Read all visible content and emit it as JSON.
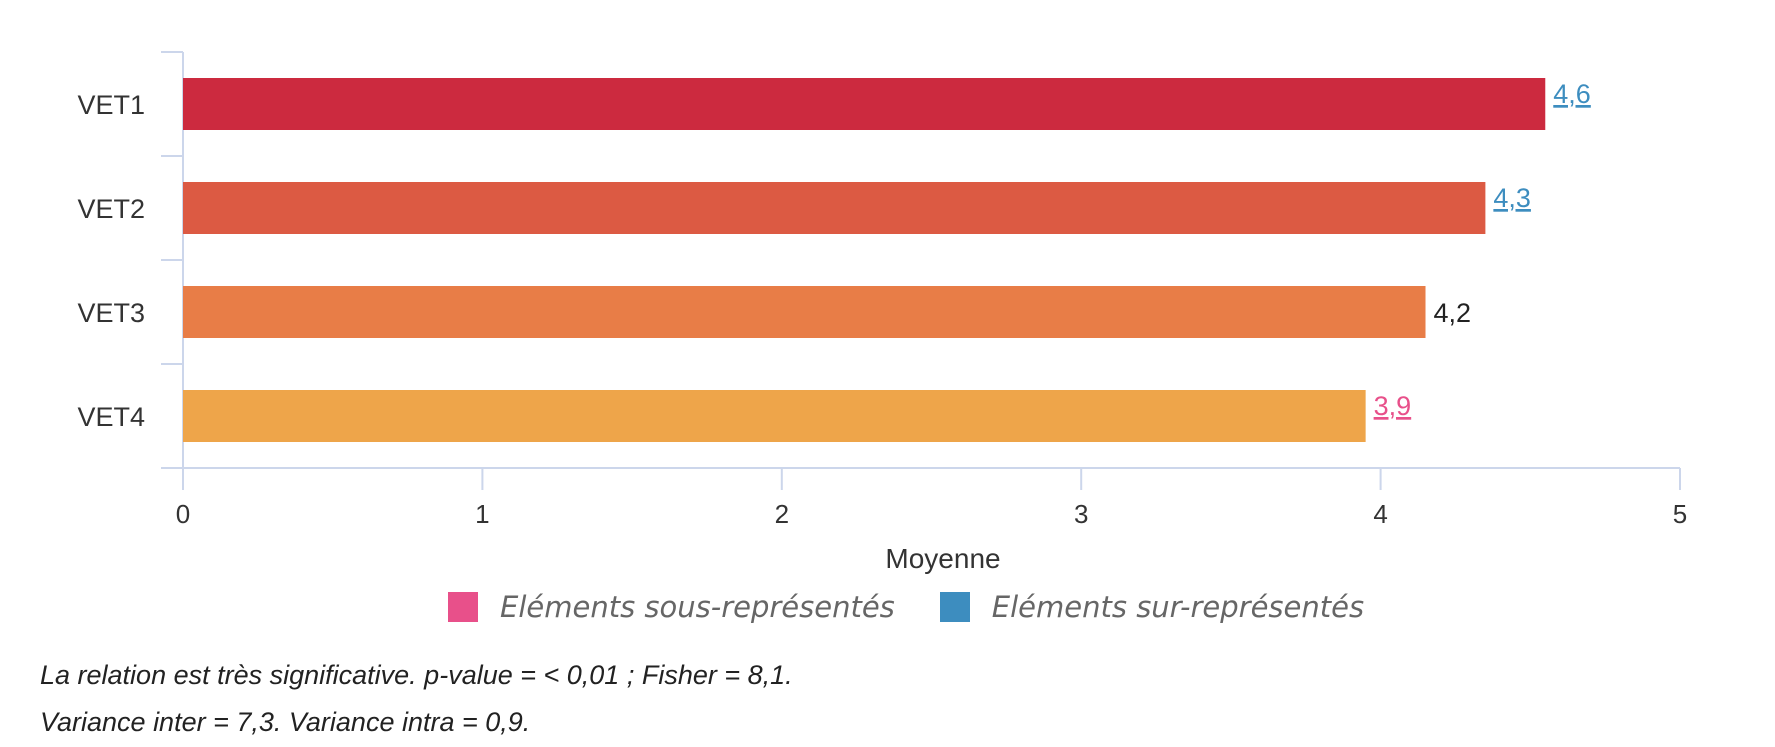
{
  "chart_data": {
    "type": "bar",
    "orientation": "horizontal",
    "categories": [
      "VET1",
      "VET2",
      "VET3",
      "VET4"
    ],
    "values": [
      4.55,
      4.35,
      4.15,
      3.95
    ],
    "value_labels": [
      "4,6",
      "4,3",
      "4,2",
      "3,9"
    ],
    "value_label_status": [
      "over",
      "over",
      "normal",
      "under"
    ],
    "bar_colors": [
      "#cc2a3f",
      "#dc5a43",
      "#e87d47",
      "#eea54a"
    ],
    "xlabel": "Moyenne",
    "xlim": [
      0,
      5
    ],
    "xticks": [
      "0",
      "1",
      "2",
      "3",
      "4",
      "5"
    ],
    "grid": false
  },
  "legend": {
    "under_label": "Eléments sous-représentés",
    "under_color": "#e8508a",
    "over_label": "Eléments sur-représentés",
    "over_color": "#3d8dbf"
  },
  "status_colors": {
    "over": "#3d8dbf",
    "under": "#e8508a",
    "normal": "#222222"
  },
  "notes": {
    "line1": "La relation est très significative. p-value = < 0,01 ; Fisher = 8,1.",
    "line2": "Variance inter = 7,3. Variance intra = 0,9."
  }
}
